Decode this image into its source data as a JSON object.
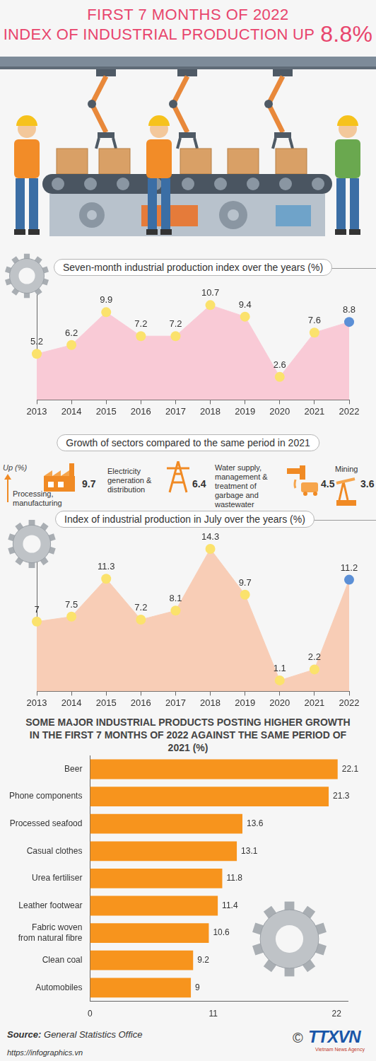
{
  "header": {
    "title": "FIRST 7 MONTHS OF 2022",
    "subtitle": "INDEX OF INDUSTRIAL PRODUCTION UP",
    "highlight": "8.8%"
  },
  "chart_data": [
    {
      "type": "line",
      "title": "Seven-month industrial production index over the years (%)",
      "categories": [
        "2013",
        "2014",
        "2015",
        "2016",
        "2017",
        "2018",
        "2019",
        "2020",
        "2021",
        "2022"
      ],
      "values": [
        5.2,
        6.2,
        9.9,
        7.2,
        7.2,
        10.7,
        9.4,
        2.6,
        7.6,
        8.8
      ],
      "color": "#f9cad6",
      "colors": [
        "#fbe26c",
        "#fbe26c",
        "#fbe26c",
        "#fbe26c",
        "#fbe26c",
        "#fbe26c",
        "#fbe26c",
        "#fbe26c",
        "#fbe26c",
        "#5b8fd6"
      ],
      "ylim": [
        0,
        14
      ],
      "grid": false,
      "data_labels": true,
      "tick_labels": "x"
    },
    {
      "type": "line",
      "title": "Index of industrial production in July over the years (%)",
      "categories": [
        "2013",
        "2014",
        "2015",
        "2016",
        "2017",
        "2018",
        "2019",
        "2020",
        "2021",
        "2022"
      ],
      "values": [
        7,
        7.5,
        11.3,
        7.2,
        8.1,
        14.3,
        9.7,
        1.1,
        2.2,
        11.2
      ],
      "color": "#f8cdb6",
      "colors": [
        "#fbe26c",
        "#fbe26c",
        "#fbe26c",
        "#fbe26c",
        "#fbe26c",
        "#fbe26c",
        "#fbe26c",
        "#fbe26c",
        "#fbe26c",
        "#5b8fd6"
      ],
      "ylim": [
        0,
        16
      ],
      "grid": false,
      "data_labels": true,
      "tick_labels": "x"
    },
    {
      "type": "bar",
      "orientation": "horizontal",
      "title": "SOME MAJOR INDUSTRIAL PRODUCTS POSTING HIGHER GROWTH IN THE FIRST 7 MONTHS OF 2022 AGAINST THE SAME PERIOD OF 2021 (%)",
      "categories": [
        "Beer",
        "Phone components",
        "Processed seafood",
        "Casual clothes",
        "Urea fertiliser",
        "Leather footwear",
        "Fabric woven from natural fibre",
        "Clean coal",
        "Automobiles"
      ],
      "values": [
        22.1,
        21.3,
        13.6,
        13.1,
        11.8,
        11.4,
        10.6,
        9.2,
        9
      ],
      "color": "#f7941d",
      "xlim": [
        0,
        23
      ],
      "xticks": [
        0,
        11,
        22
      ],
      "grid": false,
      "data_labels": true
    }
  ],
  "sectors": {
    "title": "Growth of sectors compared to the same period in 2021",
    "axis_label": "Up (%)",
    "items": [
      {
        "label": "Processing, manufacturing",
        "value": 9.7
      },
      {
        "label": "Electricity generation & distribution",
        "value": 6.4
      },
      {
        "label": "Water supply, management & treatment of garbage and wastewater",
        "value": 4.5
      },
      {
        "label": "Mining",
        "value": 3.6
      }
    ]
  },
  "footer": {
    "source_label": "Source:",
    "source": "General Statistics Office",
    "url": "https://infographics.vn",
    "copyright": "©",
    "logo": "TTXVN",
    "agency": "Vietnam News Agency"
  }
}
